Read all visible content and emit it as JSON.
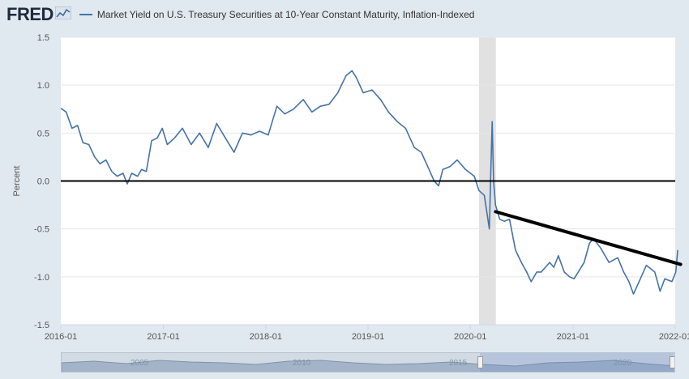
{
  "header": {
    "logo_text": "FRED",
    "logo_icon": "line-chart-icon",
    "legend_label": "Market Yield on U.S. Treasury Securities at 10-Year Constant Maturity, Inflation-Indexed"
  },
  "colors": {
    "series": "#4572a7",
    "recession": "#e1e1e1",
    "zero_line": "#000000",
    "trend_line": "#000000",
    "plot_bg": "#ffffff",
    "page_bg": "#e1e9f0"
  },
  "chart_data": {
    "type": "line",
    "ylabel": "Percent",
    "ylim": [
      -1.5,
      1.5
    ],
    "yticks": [
      "1.5",
      "1.0",
      "0.5",
      "0.0",
      "-0.5",
      "-1.0",
      "-1.5"
    ],
    "xlim": [
      "2016-01",
      "2022-01"
    ],
    "xticks": [
      "2016-01",
      "2017-01",
      "2018-01",
      "2019-01",
      "2020-01",
      "2021-01",
      "2022-01"
    ],
    "grid": true,
    "recession_band": [
      "2020-02",
      "2020-04"
    ],
    "series": [
      {
        "name": "Market Yield on U.S. Treasury Securities at 10-Year Constant Maturity, Inflation-Indexed",
        "points": [
          [
            "2016-01-01",
            0.76
          ],
          [
            "2016-01-20",
            0.72
          ],
          [
            "2016-02-10",
            0.55
          ],
          [
            "2016-03-01",
            0.58
          ],
          [
            "2016-03-20",
            0.4
          ],
          [
            "2016-04-10",
            0.38
          ],
          [
            "2016-05-01",
            0.25
          ],
          [
            "2016-05-20",
            0.18
          ],
          [
            "2016-06-10",
            0.22
          ],
          [
            "2016-07-01",
            0.1
          ],
          [
            "2016-07-20",
            0.05
          ],
          [
            "2016-08-10",
            0.08
          ],
          [
            "2016-08-25",
            -0.03
          ],
          [
            "2016-09-10",
            0.08
          ],
          [
            "2016-10-01",
            0.05
          ],
          [
            "2016-10-15",
            0.12
          ],
          [
            "2016-11-01",
            0.1
          ],
          [
            "2016-11-10",
            0.25
          ],
          [
            "2016-11-20",
            0.42
          ],
          [
            "2016-12-10",
            0.45
          ],
          [
            "2016-12-28",
            0.55
          ],
          [
            "2017-01-15",
            0.38
          ],
          [
            "2017-02-10",
            0.45
          ],
          [
            "2017-03-10",
            0.55
          ],
          [
            "2017-04-10",
            0.38
          ],
          [
            "2017-05-10",
            0.5
          ],
          [
            "2017-06-10",
            0.35
          ],
          [
            "2017-07-10",
            0.6
          ],
          [
            "2017-08-10",
            0.45
          ],
          [
            "2017-09-10",
            0.3
          ],
          [
            "2017-10-10",
            0.5
          ],
          [
            "2017-11-10",
            0.48
          ],
          [
            "2017-12-10",
            0.52
          ],
          [
            "2018-01-10",
            0.48
          ],
          [
            "2018-02-10",
            0.78
          ],
          [
            "2018-03-10",
            0.7
          ],
          [
            "2018-04-10",
            0.75
          ],
          [
            "2018-05-15",
            0.85
          ],
          [
            "2018-06-15",
            0.72
          ],
          [
            "2018-07-15",
            0.78
          ],
          [
            "2018-08-15",
            0.8
          ],
          [
            "2018-09-15",
            0.92
          ],
          [
            "2018-10-15",
            1.1
          ],
          [
            "2018-11-05",
            1.15
          ],
          [
            "2018-11-20",
            1.08
          ],
          [
            "2018-12-15",
            0.92
          ],
          [
            "2019-01-15",
            0.95
          ],
          [
            "2019-02-15",
            0.85
          ],
          [
            "2019-03-15",
            0.72
          ],
          [
            "2019-04-15",
            0.62
          ],
          [
            "2019-05-15",
            0.55
          ],
          [
            "2019-06-15",
            0.35
          ],
          [
            "2019-07-10",
            0.3
          ],
          [
            "2019-08-10",
            0.1
          ],
          [
            "2019-08-25",
            0.0
          ],
          [
            "2019-09-10",
            -0.05
          ],
          [
            "2019-09-25",
            0.12
          ],
          [
            "2019-10-20",
            0.15
          ],
          [
            "2019-11-15",
            0.22
          ],
          [
            "2019-12-15",
            0.12
          ],
          [
            "2020-01-15",
            0.05
          ],
          [
            "2020-02-01",
            -0.1
          ],
          [
            "2020-02-20",
            -0.15
          ],
          [
            "2020-03-09",
            -0.5
          ],
          [
            "2020-03-15",
            0.2
          ],
          [
            "2020-03-19",
            0.62
          ],
          [
            "2020-03-24",
            0.0
          ],
          [
            "2020-03-31",
            -0.25
          ],
          [
            "2020-04-15",
            -0.4
          ],
          [
            "2020-05-01",
            -0.42
          ],
          [
            "2020-05-20",
            -0.4
          ],
          [
            "2020-06-10",
            -0.72
          ],
          [
            "2020-07-01",
            -0.85
          ],
          [
            "2020-07-20",
            -0.95
          ],
          [
            "2020-08-05",
            -1.05
          ],
          [
            "2020-08-25",
            -0.95
          ],
          [
            "2020-09-10",
            -0.95
          ],
          [
            "2020-10-10",
            -0.85
          ],
          [
            "2020-10-25",
            -0.9
          ],
          [
            "2020-11-10",
            -0.78
          ],
          [
            "2020-12-01",
            -0.95
          ],
          [
            "2020-12-20",
            -1.0
          ],
          [
            "2021-01-05",
            -1.02
          ],
          [
            "2021-01-20",
            -0.95
          ],
          [
            "2021-02-10",
            -0.85
          ],
          [
            "2021-03-01",
            -0.65
          ],
          [
            "2021-03-15",
            -0.6
          ],
          [
            "2021-04-10",
            -0.7
          ],
          [
            "2021-05-10",
            -0.85
          ],
          [
            "2021-06-10",
            -0.8
          ],
          [
            "2021-07-01",
            -0.95
          ],
          [
            "2021-07-20",
            -1.05
          ],
          [
            "2021-08-05",
            -1.18
          ],
          [
            "2021-08-25",
            -1.05
          ],
          [
            "2021-09-20",
            -0.88
          ],
          [
            "2021-10-20",
            -0.95
          ],
          [
            "2021-11-08",
            -1.15
          ],
          [
            "2021-11-25",
            -1.02
          ],
          [
            "2021-12-20",
            -1.05
          ],
          [
            "2022-01-03",
            -0.95
          ],
          [
            "2022-01-10",
            -0.72
          ]
        ]
      }
    ],
    "annotation_trend_line": {
      "from": [
        "2020-03-31",
        -0.32
      ],
      "to": [
        "2022-01-20",
        -0.87
      ]
    }
  },
  "navigator": {
    "labels": [
      "2005",
      "2010",
      "2015",
      "2020"
    ]
  }
}
